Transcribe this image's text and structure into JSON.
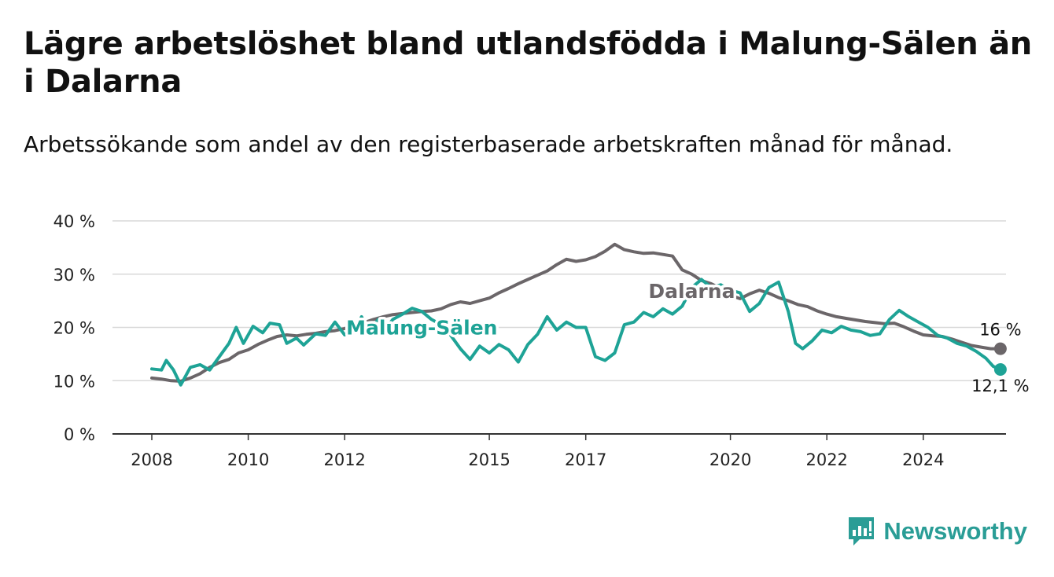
{
  "title": "Lägre arbetslöshet bland utlandsfödda i Malung-Sälen än i Dalarna",
  "subtitle": "Arbetssökande som andel av den registerbaserade arbetskraften månad för månad.",
  "brand": {
    "name": "Newsworthy",
    "color": "#2a9d96"
  },
  "chart_data": {
    "type": "line",
    "ylim": [
      0,
      40
    ],
    "xlim": [
      2008,
      2025.8
    ],
    "y_ticks": [
      {
        "value": 0,
        "label": "0 %"
      },
      {
        "value": 10,
        "label": "10 %"
      },
      {
        "value": 20,
        "label": "20 %"
      },
      {
        "value": 30,
        "label": "30 %"
      },
      {
        "value": 40,
        "label": "40 %"
      }
    ],
    "x_ticks": [
      {
        "value": 2008,
        "label": "2008"
      },
      {
        "value": 2010,
        "label": "2010"
      },
      {
        "value": 2012,
        "label": "2012"
      },
      {
        "value": 2015,
        "label": "2015"
      },
      {
        "value": 2017,
        "label": "2017"
      },
      {
        "value": 2020,
        "label": "2020"
      },
      {
        "value": 2022,
        "label": "2022"
      },
      {
        "value": 2024,
        "label": "2024"
      }
    ],
    "grid": true,
    "series": [
      {
        "name": "Dalarna",
        "color": "#6b6669",
        "end_label": "16 %",
        "points": [
          [
            2008.0,
            10.5
          ],
          [
            2008.2,
            10.3
          ],
          [
            2008.4,
            10.0
          ],
          [
            2008.6,
            9.9
          ],
          [
            2008.8,
            10.5
          ],
          [
            2009.0,
            11.3
          ],
          [
            2009.2,
            12.5
          ],
          [
            2009.4,
            13.4
          ],
          [
            2009.6,
            14.0
          ],
          [
            2009.8,
            15.2
          ],
          [
            2010.0,
            15.8
          ],
          [
            2010.2,
            16.8
          ],
          [
            2010.4,
            17.6
          ],
          [
            2010.6,
            18.3
          ],
          [
            2010.8,
            18.6
          ],
          [
            2011.0,
            18.4
          ],
          [
            2011.2,
            18.7
          ],
          [
            2011.4,
            18.9
          ],
          [
            2011.6,
            19.2
          ],
          [
            2011.8,
            19.4
          ],
          [
            2012.0,
            19.8
          ],
          [
            2012.2,
            20.4
          ],
          [
            2012.4,
            20.9
          ],
          [
            2012.6,
            21.5
          ],
          [
            2012.8,
            22.0
          ],
          [
            2013.0,
            22.4
          ],
          [
            2013.2,
            22.6
          ],
          [
            2013.4,
            22.8
          ],
          [
            2013.6,
            23.0
          ],
          [
            2013.8,
            23.1
          ],
          [
            2014.0,
            23.5
          ],
          [
            2014.2,
            24.3
          ],
          [
            2014.4,
            24.8
          ],
          [
            2014.6,
            24.5
          ],
          [
            2014.8,
            25.0
          ],
          [
            2015.0,
            25.5
          ],
          [
            2015.2,
            26.5
          ],
          [
            2015.4,
            27.3
          ],
          [
            2015.6,
            28.2
          ],
          [
            2015.8,
            29.0
          ],
          [
            2016.0,
            29.8
          ],
          [
            2016.2,
            30.6
          ],
          [
            2016.4,
            31.8
          ],
          [
            2016.6,
            32.8
          ],
          [
            2016.8,
            32.4
          ],
          [
            2017.0,
            32.7
          ],
          [
            2017.2,
            33.3
          ],
          [
            2017.4,
            34.3
          ],
          [
            2017.6,
            35.6
          ],
          [
            2017.8,
            34.6
          ],
          [
            2018.0,
            34.2
          ],
          [
            2018.2,
            33.9
          ],
          [
            2018.4,
            34.0
          ],
          [
            2018.6,
            33.7
          ],
          [
            2018.8,
            33.4
          ],
          [
            2019.0,
            30.8
          ],
          [
            2019.2,
            30.0
          ],
          [
            2019.4,
            28.8
          ],
          [
            2019.6,
            28.2
          ],
          [
            2019.8,
            27.3
          ],
          [
            2020.0,
            26.0
          ],
          [
            2020.2,
            25.4
          ],
          [
            2020.4,
            26.3
          ],
          [
            2020.6,
            27.0
          ],
          [
            2020.8,
            26.4
          ],
          [
            2021.0,
            25.6
          ],
          [
            2021.2,
            25.0
          ],
          [
            2021.4,
            24.3
          ],
          [
            2021.6,
            23.9
          ],
          [
            2021.8,
            23.1
          ],
          [
            2022.0,
            22.5
          ],
          [
            2022.2,
            22.0
          ],
          [
            2022.4,
            21.7
          ],
          [
            2022.6,
            21.4
          ],
          [
            2022.8,
            21.1
          ],
          [
            2023.0,
            20.9
          ],
          [
            2023.2,
            20.7
          ],
          [
            2023.4,
            20.8
          ],
          [
            2023.6,
            20.1
          ],
          [
            2023.8,
            19.3
          ],
          [
            2024.0,
            18.6
          ],
          [
            2024.2,
            18.4
          ],
          [
            2024.4,
            18.3
          ],
          [
            2024.6,
            17.8
          ],
          [
            2024.8,
            17.2
          ],
          [
            2025.0,
            16.6
          ],
          [
            2025.2,
            16.3
          ],
          [
            2025.4,
            16.0
          ],
          [
            2025.6,
            16.0
          ]
        ]
      },
      {
        "name": "Malung-Sälen",
        "color": "#1ea396",
        "end_label": "12,1 %",
        "points": [
          [
            2008.0,
            12.2
          ],
          [
            2008.2,
            12.0
          ],
          [
            2008.3,
            13.8
          ],
          [
            2008.45,
            12.0
          ],
          [
            2008.6,
            9.2
          ],
          [
            2008.8,
            12.5
          ],
          [
            2009.0,
            13.0
          ],
          [
            2009.2,
            12.0
          ],
          [
            2009.4,
            14.5
          ],
          [
            2009.6,
            17.0
          ],
          [
            2009.75,
            20.0
          ],
          [
            2009.9,
            17.0
          ],
          [
            2010.1,
            20.2
          ],
          [
            2010.3,
            19.0
          ],
          [
            2010.45,
            20.8
          ],
          [
            2010.65,
            20.5
          ],
          [
            2010.8,
            17.0
          ],
          [
            2011.0,
            18.0
          ],
          [
            2011.15,
            16.7
          ],
          [
            2011.4,
            18.8
          ],
          [
            2011.6,
            18.5
          ],
          [
            2011.8,
            21.0
          ],
          [
            2012.0,
            18.6
          ],
          [
            2012.2,
            19.2
          ],
          [
            2012.35,
            22.0
          ],
          [
            2012.5,
            19.5
          ],
          [
            2012.7,
            21.5
          ],
          [
            2012.85,
            19.8
          ],
          [
            2013.0,
            21.5
          ],
          [
            2013.2,
            22.5
          ],
          [
            2013.4,
            23.6
          ],
          [
            2013.6,
            23.0
          ],
          [
            2013.8,
            21.5
          ],
          [
            2014.0,
            20.5
          ],
          [
            2014.2,
            18.5
          ],
          [
            2014.4,
            16.0
          ],
          [
            2014.6,
            14.0
          ],
          [
            2014.8,
            16.5
          ],
          [
            2015.0,
            15.2
          ],
          [
            2015.2,
            16.8
          ],
          [
            2015.4,
            15.8
          ],
          [
            2015.6,
            13.5
          ],
          [
            2015.8,
            16.8
          ],
          [
            2016.0,
            18.7
          ],
          [
            2016.2,
            22.0
          ],
          [
            2016.4,
            19.5
          ],
          [
            2016.6,
            21.0
          ],
          [
            2016.8,
            20.0
          ],
          [
            2017.0,
            20.0
          ],
          [
            2017.2,
            14.5
          ],
          [
            2017.4,
            13.8
          ],
          [
            2017.6,
            15.2
          ],
          [
            2017.8,
            20.5
          ],
          [
            2018.0,
            21.0
          ],
          [
            2018.2,
            22.8
          ],
          [
            2018.4,
            22.0
          ],
          [
            2018.6,
            23.5
          ],
          [
            2018.8,
            22.5
          ],
          [
            2019.0,
            24.0
          ],
          [
            2019.2,
            27.5
          ],
          [
            2019.4,
            29.0
          ],
          [
            2019.6,
            27.5
          ],
          [
            2019.8,
            28.0
          ],
          [
            2020.0,
            27.0
          ],
          [
            2020.2,
            26.5
          ],
          [
            2020.4,
            23.0
          ],
          [
            2020.6,
            24.5
          ],
          [
            2020.8,
            27.5
          ],
          [
            2021.0,
            28.5
          ],
          [
            2021.2,
            23.0
          ],
          [
            2021.35,
            17.0
          ],
          [
            2021.5,
            16.0
          ],
          [
            2021.7,
            17.5
          ],
          [
            2021.9,
            19.5
          ],
          [
            2022.1,
            19.0
          ],
          [
            2022.3,
            20.2
          ],
          [
            2022.5,
            19.5
          ],
          [
            2022.7,
            19.2
          ],
          [
            2022.9,
            18.5
          ],
          [
            2023.1,
            18.8
          ],
          [
            2023.3,
            21.5
          ],
          [
            2023.5,
            23.2
          ],
          [
            2023.7,
            22.0
          ],
          [
            2023.9,
            21.0
          ],
          [
            2024.1,
            20.0
          ],
          [
            2024.3,
            18.5
          ],
          [
            2024.5,
            18.0
          ],
          [
            2024.7,
            17.0
          ],
          [
            2024.9,
            16.5
          ],
          [
            2025.1,
            15.5
          ],
          [
            2025.3,
            14.2
          ],
          [
            2025.45,
            12.7
          ],
          [
            2025.6,
            12.1
          ]
        ]
      }
    ]
  }
}
